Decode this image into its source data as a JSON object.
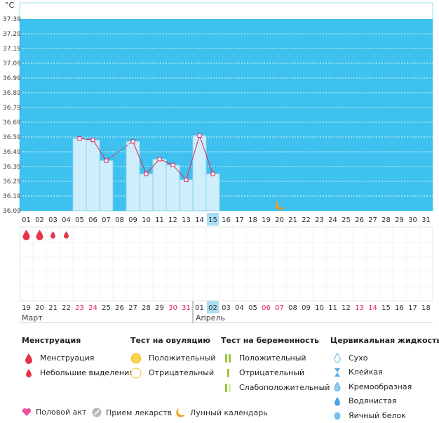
{
  "chart_data": {
    "type": "bar",
    "ylabel": "°C",
    "ylim": [
      36.09,
      37.39
    ],
    "y_ticks": [
      "37.39",
      "37.29",
      "37.19",
      "37.09",
      "36.99",
      "36.89",
      "36.79",
      "36.69",
      "36.59",
      "36.49",
      "36.39",
      "36.29",
      "36.19",
      "36.09"
    ],
    "cycle_days": [
      "01",
      "02",
      "03",
      "04",
      "05",
      "06",
      "07",
      "08",
      "09",
      "10",
      "11",
      "12",
      "13",
      "14",
      "15",
      "16",
      "17",
      "18",
      "19",
      "20",
      "21",
      "22",
      "23",
      "24",
      "25",
      "26",
      "27",
      "28",
      "29",
      "30",
      "31"
    ],
    "dates": [
      "19",
      "20",
      "21",
      "22",
      "23",
      "24",
      "25",
      "26",
      "27",
      "28",
      "29",
      "30",
      "31",
      "01",
      "02",
      "03",
      "04",
      "05",
      "06",
      "07",
      "08",
      "09",
      "10",
      "11",
      "12",
      "13",
      "14",
      "15",
      "16",
      "17",
      "18"
    ],
    "date_colors": [
      "#333333",
      "#333333",
      "#333333",
      "#333333",
      "#e0245e",
      "#e0245e",
      "#333333",
      "#333333",
      "#333333",
      "#333333",
      "#333333",
      "#e0245e",
      "#e0245e",
      "#333333",
      "#333333",
      "#333333",
      "#333333",
      "#333333",
      "#e0245e",
      "#e0245e",
      "#333333",
      "#333333",
      "#333333",
      "#333333",
      "#333333",
      "#e0245e",
      "#e0245e",
      "#333333",
      "#333333",
      "#333333",
      "#333333"
    ],
    "temperatures": [
      null,
      null,
      null,
      null,
      36.58,
      36.57,
      36.43,
      null,
      36.56,
      36.34,
      36.44,
      36.4,
      36.3,
      36.6,
      36.34,
      null,
      null,
      null,
      null,
      null,
      null,
      null,
      null,
      null,
      null,
      null,
      null,
      null,
      null,
      null,
      null
    ],
    "today_index": 14,
    "moon_index": 19,
    "menstruation": [
      {
        "index": 0,
        "type": "menstruation"
      },
      {
        "index": 1,
        "type": "menstruation"
      },
      {
        "index": 2,
        "type": "spotting"
      },
      {
        "index": 3,
        "type": "spotting"
      }
    ],
    "months": [
      {
        "label": "Март",
        "start_index": 0
      },
      {
        "label": "Апрель",
        "start_index": 13
      }
    ],
    "colors": {
      "fertile_bg": "#3ec1ee",
      "bar_fill": "#cdeefa",
      "bar_stroke": "#8fd3f0",
      "line": "#e0245e",
      "today": "#a9def3",
      "weekend": "#e0245e",
      "moon": "#f39a1e"
    }
  },
  "legend": {
    "menstruation": {
      "title": "Менструация",
      "items": [
        "Менструация",
        "Небольшие выделения"
      ]
    },
    "ovulation": {
      "title": "Тест на овуляцию",
      "items": [
        "Положительный",
        "Отрицательный"
      ]
    },
    "pregnancy": {
      "title": "Тест на беременность",
      "items": [
        "Положительный",
        "Отрицательный",
        "Слабоположительный"
      ]
    },
    "cervical": {
      "title": "Цервикальная жидкость",
      "items": [
        "Сухо",
        "Клейкая",
        "Кремообразная",
        "Водянистая",
        "Яичный белок"
      ]
    },
    "bottom": [
      "Половой акт",
      "Прием лекарств",
      "Лунный календарь"
    ]
  }
}
